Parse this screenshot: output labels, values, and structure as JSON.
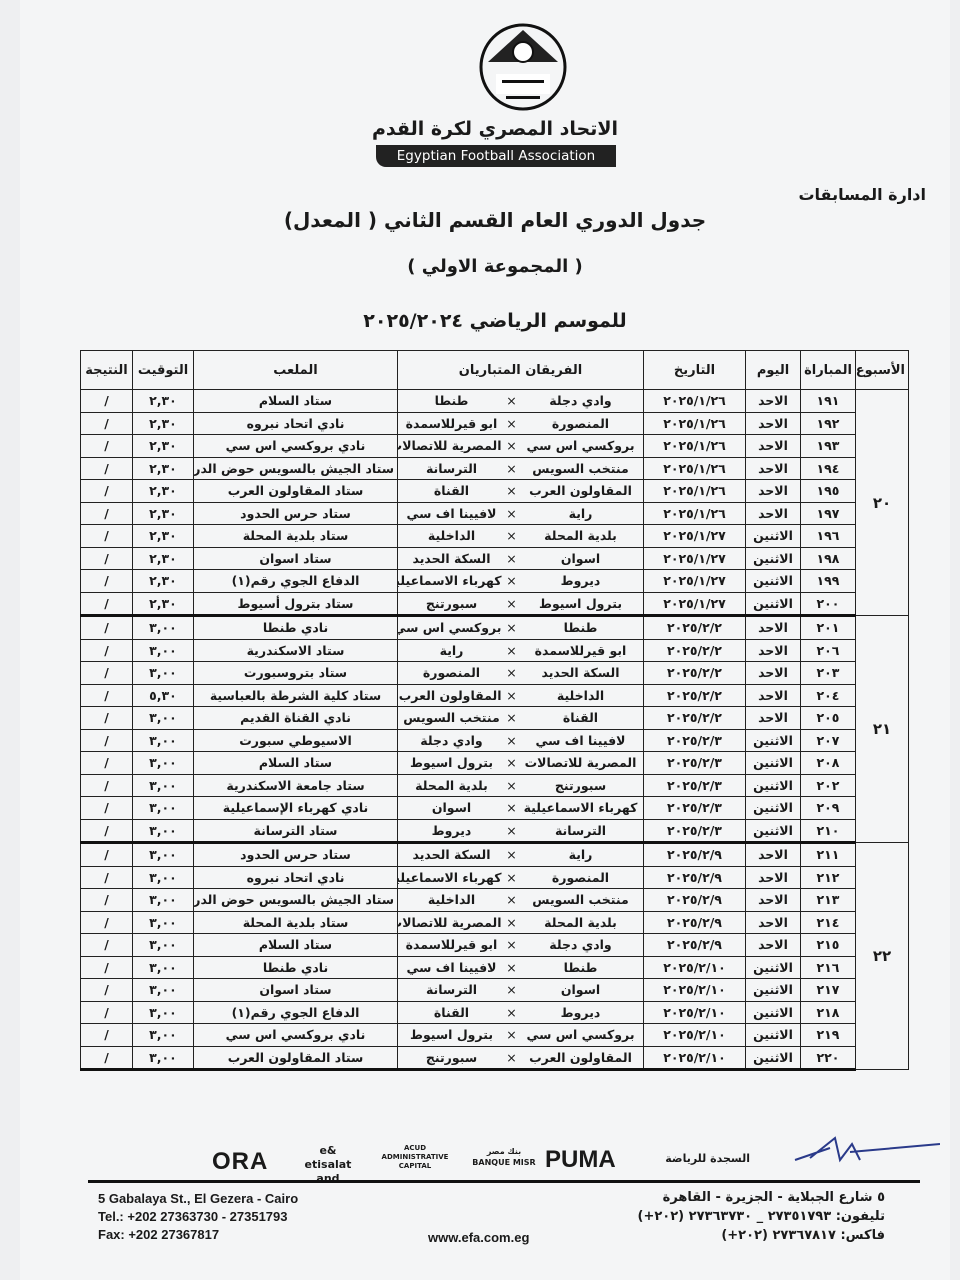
{
  "header": {
    "org_name_ar": "الاتحاد المصري لكرة القدم",
    "org_name_en": "Egyptian Football Association",
    "logo_text": "الاتحاد المصري لكرة القدم EGYPTIAN FA",
    "department": "ادارة المسابقات",
    "title": "جدول الدوري العام القسم الثاني ( المعدل)",
    "subtitle": "( المجموعة الاولي )",
    "season": "للموسم الرياضي ٢٠٢٥/٢٠٢٤"
  },
  "table": {
    "columns": {
      "week": "الأسبوع",
      "match": "المباراة",
      "day": "اليوم",
      "date": "التاريخ",
      "teams": "الفريقان المتباريان",
      "stadium": "الملعب",
      "time": "التوقيت",
      "result": "النتيجة"
    },
    "vs_symbol": "×",
    "weeks": [
      {
        "week": "٢٠",
        "matches": [
          {
            "no": "١٩١",
            "day": "الاحد",
            "date": "٢٠٢٥/١/٢٦",
            "home": "وادي دجلة",
            "away": "طنطا",
            "stadium": "ستاد السلام",
            "time": "٢,٣٠",
            "result": "/"
          },
          {
            "no": "١٩٢",
            "day": "الاحد",
            "date": "٢٠٢٥/١/٢٦",
            "home": "المنصورة",
            "away": "ابو قيرللاسمدة",
            "stadium": "نادي اتحاد نبروه",
            "time": "٢,٣٠",
            "result": "/"
          },
          {
            "no": "١٩٣",
            "day": "الاحد",
            "date": "٢٠٢٥/١/٢٦",
            "home": "بروكسي اس سي",
            "away": "المصرية للاتصالات",
            "stadium": "نادي بروكسي اس سي",
            "time": "٢,٣٠",
            "result": "/"
          },
          {
            "no": "١٩٤",
            "day": "الاحد",
            "date": "٢٠٢٥/١/٢٦",
            "home": "منتخب السويس",
            "away": "الترسانة",
            "stadium": "ستاد الجيش بالسويس حوض الدرس",
            "time": "٢,٣٠",
            "result": "/"
          },
          {
            "no": "١٩٥",
            "day": "الاحد",
            "date": "٢٠٢٥/١/٢٦",
            "home": "المقاولون العرب",
            "away": "القناة",
            "stadium": "ستاد المقاولون العرب",
            "time": "٢,٣٠",
            "result": "/"
          },
          {
            "no": "١٩٧",
            "day": "الاحد",
            "date": "٢٠٢٥/١/٢٦",
            "home": "راية",
            "away": "لافيينا اف سي",
            "stadium": "ستاد حرس الحدود",
            "time": "٢,٣٠",
            "result": "/"
          },
          {
            "no": "١٩٦",
            "day": "الاثنين",
            "date": "٢٠٢٥/١/٢٧",
            "home": "بلدية المحلة",
            "away": "الداخلية",
            "stadium": "ستاد بلدية المحلة",
            "time": "٢,٣٠",
            "result": "/"
          },
          {
            "no": "١٩٨",
            "day": "الاثنين",
            "date": "٢٠٢٥/١/٢٧",
            "home": "اسوان",
            "away": "السكة الحديد",
            "stadium": "ستاد اسوان",
            "time": "٢,٣٠",
            "result": "/"
          },
          {
            "no": "١٩٩",
            "day": "الاثنين",
            "date": "٢٠٢٥/١/٢٧",
            "home": "ديروط",
            "away": "كهرباء الاسماعيلية",
            "stadium": "الدفاع الجوي رقم(١)",
            "time": "٢,٣٠",
            "result": "/"
          },
          {
            "no": "٢٠٠",
            "day": "الاثنين",
            "date": "٢٠٢٥/١/٢٧",
            "home": "بترول اسيوط",
            "away": "سبورتنج",
            "stadium": "ستاد بترول أسيوط",
            "time": "٢,٣٠",
            "result": "/"
          }
        ]
      },
      {
        "week": "٢١",
        "matches": [
          {
            "no": "٢٠١",
            "day": "الاحد",
            "date": "٢٠٢٥/٢/٢",
            "home": "طنطا",
            "away": "بروكسي اس سي",
            "stadium": "نادي طنطا",
            "time": "٣,٠٠",
            "result": "/"
          },
          {
            "no": "٢٠٦",
            "day": "الاحد",
            "date": "٢٠٢٥/٢/٢",
            "home": "ابو قيرللاسمدة",
            "away": "راية",
            "stadium": "ستاد الاسكندرية",
            "time": "٣,٠٠",
            "result": "/"
          },
          {
            "no": "٢٠٣",
            "day": "الاحد",
            "date": "٢٠٢٥/٢/٢",
            "home": "السكة الحديد",
            "away": "المنصورة",
            "stadium": "ستاد بتروسبورت",
            "time": "٣,٠٠",
            "result": "/"
          },
          {
            "no": "٢٠٤",
            "day": "الاحد",
            "date": "٢٠٢٥/٢/٢",
            "home": "الداخلية",
            "away": "المقاولون العرب",
            "stadium": "ستاد كلية الشرطة بالعباسية",
            "time": "٥,٣٠",
            "result": "/"
          },
          {
            "no": "٢٠٥",
            "day": "الاحد",
            "date": "٢٠٢٥/٢/٢",
            "home": "القناة",
            "away": "منتخب السويس",
            "stadium": "نادي القناة القديم",
            "time": "٣,٠٠",
            "result": "/"
          },
          {
            "no": "٢٠٧",
            "day": "الاثنين",
            "date": "٢٠٢٥/٢/٣",
            "home": "لافيينا اف سي",
            "away": "وادي دجلة",
            "stadium": "الاسيوطي سبورت",
            "time": "٣,٠٠",
            "result": "/"
          },
          {
            "no": "٢٠٨",
            "day": "الاثنين",
            "date": "٢٠٢٥/٢/٣",
            "home": "المصرية للاتصالات",
            "away": "بترول اسيوط",
            "stadium": "ستاد السلام",
            "time": "٣,٠٠",
            "result": "/"
          },
          {
            "no": "٢٠٢",
            "day": "الاثنين",
            "date": "٢٠٢٥/٢/٣",
            "home": "سبورتنج",
            "away": "بلدية المحلة",
            "stadium": "ستاد جامعة الاسكندرية",
            "time": "٣,٠٠",
            "result": "/"
          },
          {
            "no": "٢٠٩",
            "day": "الاثنين",
            "date": "٢٠٢٥/٢/٣",
            "home": "كهرباء الاسماعيلية",
            "away": "اسوان",
            "stadium": "نادي كهرباء الإسماعيلية",
            "time": "٣,٠٠",
            "result": "/"
          },
          {
            "no": "٢١٠",
            "day": "الاثنين",
            "date": "٢٠٢٥/٢/٣",
            "home": "الترسانة",
            "away": "ديروط",
            "stadium": "ستاد الترسانة",
            "time": "٣,٠٠",
            "result": "/"
          }
        ]
      },
      {
        "week": "٢٢",
        "matches": [
          {
            "no": "٢١١",
            "day": "الاحد",
            "date": "٢٠٢٥/٢/٩",
            "home": "راية",
            "away": "السكة الحديد",
            "stadium": "ستاد حرس الحدود",
            "time": "٣,٠٠",
            "result": "/"
          },
          {
            "no": "٢١٢",
            "day": "الاحد",
            "date": "٢٠٢٥/٢/٩",
            "home": "المنصورة",
            "away": "كهرباء الاسماعيلية",
            "stadium": "نادي اتحاد نبروه",
            "time": "٣,٠٠",
            "result": "/"
          },
          {
            "no": "٢١٣",
            "day": "الاحد",
            "date": "٢٠٢٥/٢/٩",
            "home": "منتخب السويس",
            "away": "الداخلية",
            "stadium": "ستاد الجيش بالسويس حوض الدرس",
            "time": "٣,٠٠",
            "result": "/"
          },
          {
            "no": "٢١٤",
            "day": "الاحد",
            "date": "٢٠٢٥/٢/٩",
            "home": "بلدية المحلة",
            "away": "المصرية للاتصالات",
            "stadium": "ستاد بلدية المحلة",
            "time": "٣,٠٠",
            "result": "/"
          },
          {
            "no": "٢١٥",
            "day": "الاحد",
            "date": "٢٠٢٥/٢/٩",
            "home": "وادي دجلة",
            "away": "ابو قيرللاسمدة",
            "stadium": "ستاد السلام",
            "time": "٣,٠٠",
            "result": "/"
          },
          {
            "no": "٢١٦",
            "day": "الاثنين",
            "date": "٢٠٢٥/٢/١٠",
            "home": "طنطا",
            "away": "لافيينا اف سي",
            "stadium": "نادي طنطا",
            "time": "٣,٠٠",
            "result": "/"
          },
          {
            "no": "٢١٧",
            "day": "الاثنين",
            "date": "٢٠٢٥/٢/١٠",
            "home": "اسوان",
            "away": "الترسانة",
            "stadium": "ستاد اسوان",
            "time": "٣,٠٠",
            "result": "/"
          },
          {
            "no": "٢١٨",
            "day": "الاثنين",
            "date": "٢٠٢٥/٢/١٠",
            "home": "ديروط",
            "away": "القناة",
            "stadium": "الدفاع الجوي رقم(١)",
            "time": "٣,٠٠",
            "result": "/"
          },
          {
            "no": "٢١٩",
            "day": "الاثنين",
            "date": "٢٠٢٥/٢/١٠",
            "home": "بروكسي اس سي",
            "away": "بترول اسيوط",
            "stadium": "نادي بروكسي اس سي",
            "time": "٣,٠٠",
            "result": "/"
          },
          {
            "no": "٢٢٠",
            "day": "الاثنين",
            "date": "٢٠٢٥/٢/١٠",
            "home": "المقاولون العرب",
            "away": "سبورتنج",
            "stadium": "ستاد المقاولون العرب",
            "time": "٣,٠٠",
            "result": "/"
          }
        ]
      }
    ]
  },
  "sponsors": {
    "ora": "ORA",
    "etisalat": "e& etisalat and",
    "acud": "ACUD ADMINISTRATIVE CAPITAL",
    "banque_misr": "بنك مصر BANQUE MISR",
    "puma": "PUMA",
    "sports": "السجدة للرياضة"
  },
  "footer": {
    "address_en": "5 Gabalaya St., El Gezera - Cairo",
    "tel_en": "Tel.: +202 27363730 - 27351793",
    "fax_en": "Fax: +202 27367817",
    "website": "www.efa.com.eg",
    "address_ar": "٥ شارع الجبلاية - الجزيرة - القاهرة",
    "tel_ar": "تليفون: ٢٧٣٥١٧٩٣ _ ٢٧٣٦٣٧٣٠ (٢٠٢+)",
    "fax_ar": "فاكس: ٢٧٣٦٧٨١٧ (٢٠٢+)"
  }
}
